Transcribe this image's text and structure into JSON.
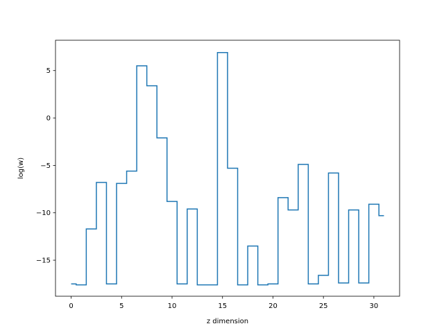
{
  "chart_data": {
    "type": "line",
    "drawstyle": "steps-mid",
    "title": "",
    "xlabel": "z dimension",
    "ylabel": "log(w)",
    "xlim": [
      -1.55,
      32.55
    ],
    "ylim": [
      -18.8,
      8.2
    ],
    "xticks": [
      0,
      5,
      10,
      15,
      20,
      25,
      30
    ],
    "yticks": [
      -15,
      -10,
      -5,
      0,
      5
    ],
    "grid": false,
    "line_color": "#1f77b4",
    "series": [
      {
        "x": [
          0,
          1,
          2,
          3,
          4,
          5,
          6,
          7,
          8,
          9,
          10,
          11,
          12,
          13,
          14,
          15,
          16,
          17,
          18,
          19,
          20,
          21,
          22,
          23,
          24,
          25,
          26,
          27,
          28,
          29,
          30,
          31
        ],
        "values": [
          -17.5,
          -17.6,
          -11.7,
          -6.8,
          -17.5,
          -6.9,
          -5.6,
          5.5,
          3.4,
          -2.1,
          -8.8,
          -17.5,
          -9.6,
          -17.6,
          -17.6,
          6.9,
          -5.3,
          -17.6,
          -13.5,
          -17.6,
          -17.5,
          -8.4,
          -9.7,
          -4.9,
          -17.5,
          -16.6,
          -5.8,
          -17.4,
          -9.7,
          -17.4,
          -9.1,
          -10.3
        ]
      }
    ]
  }
}
